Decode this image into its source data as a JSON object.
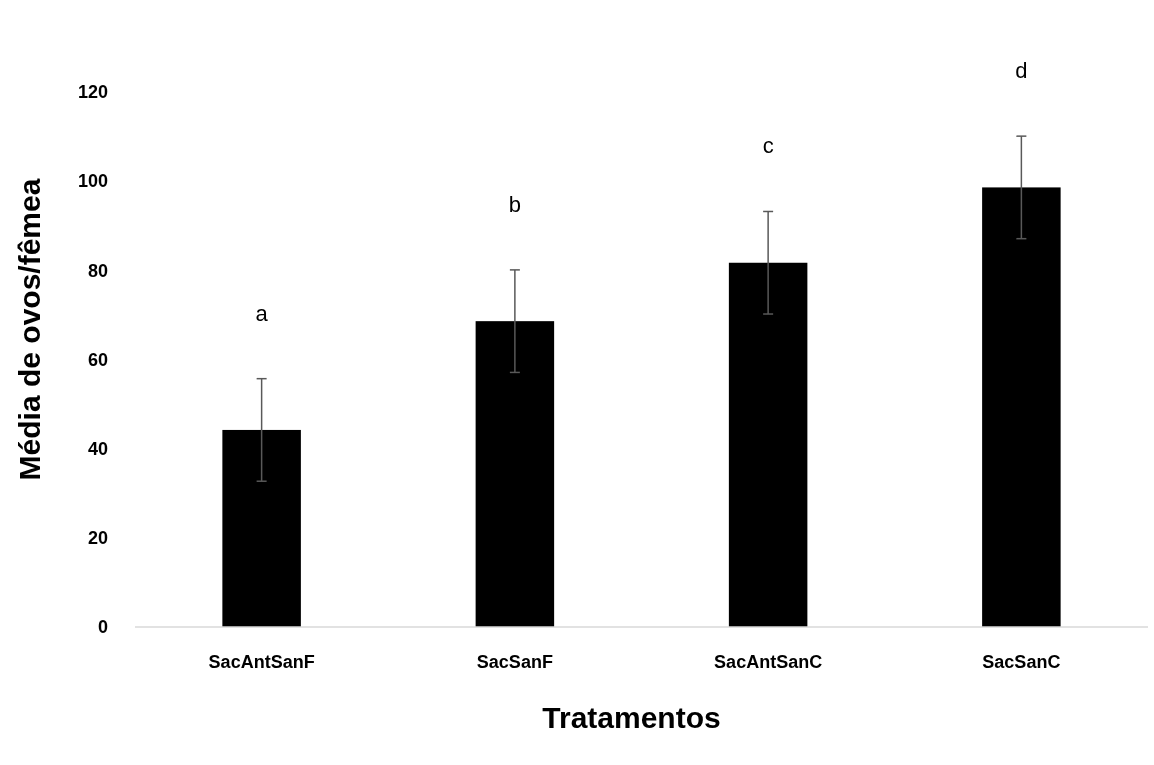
{
  "chart_data": {
    "type": "bar",
    "xlabel": "Tratamentos",
    "ylabel": "Média de ovos/fêmea",
    "categories": [
      "SacAntSanF",
      "SacSanF",
      "SacAntSanC",
      "SacSanC"
    ],
    "values": [
      44.2,
      68.6,
      81.7,
      98.6
    ],
    "errors": [
      11.5,
      11.5,
      11.5,
      11.5
    ],
    "color": "#000000",
    "ylim": [
      0,
      120
    ],
    "yticks": [
      0,
      20,
      40,
      60,
      80,
      100,
      120
    ],
    "grid": false,
    "annotations": [
      "a",
      "b",
      "c",
      "d"
    ]
  }
}
